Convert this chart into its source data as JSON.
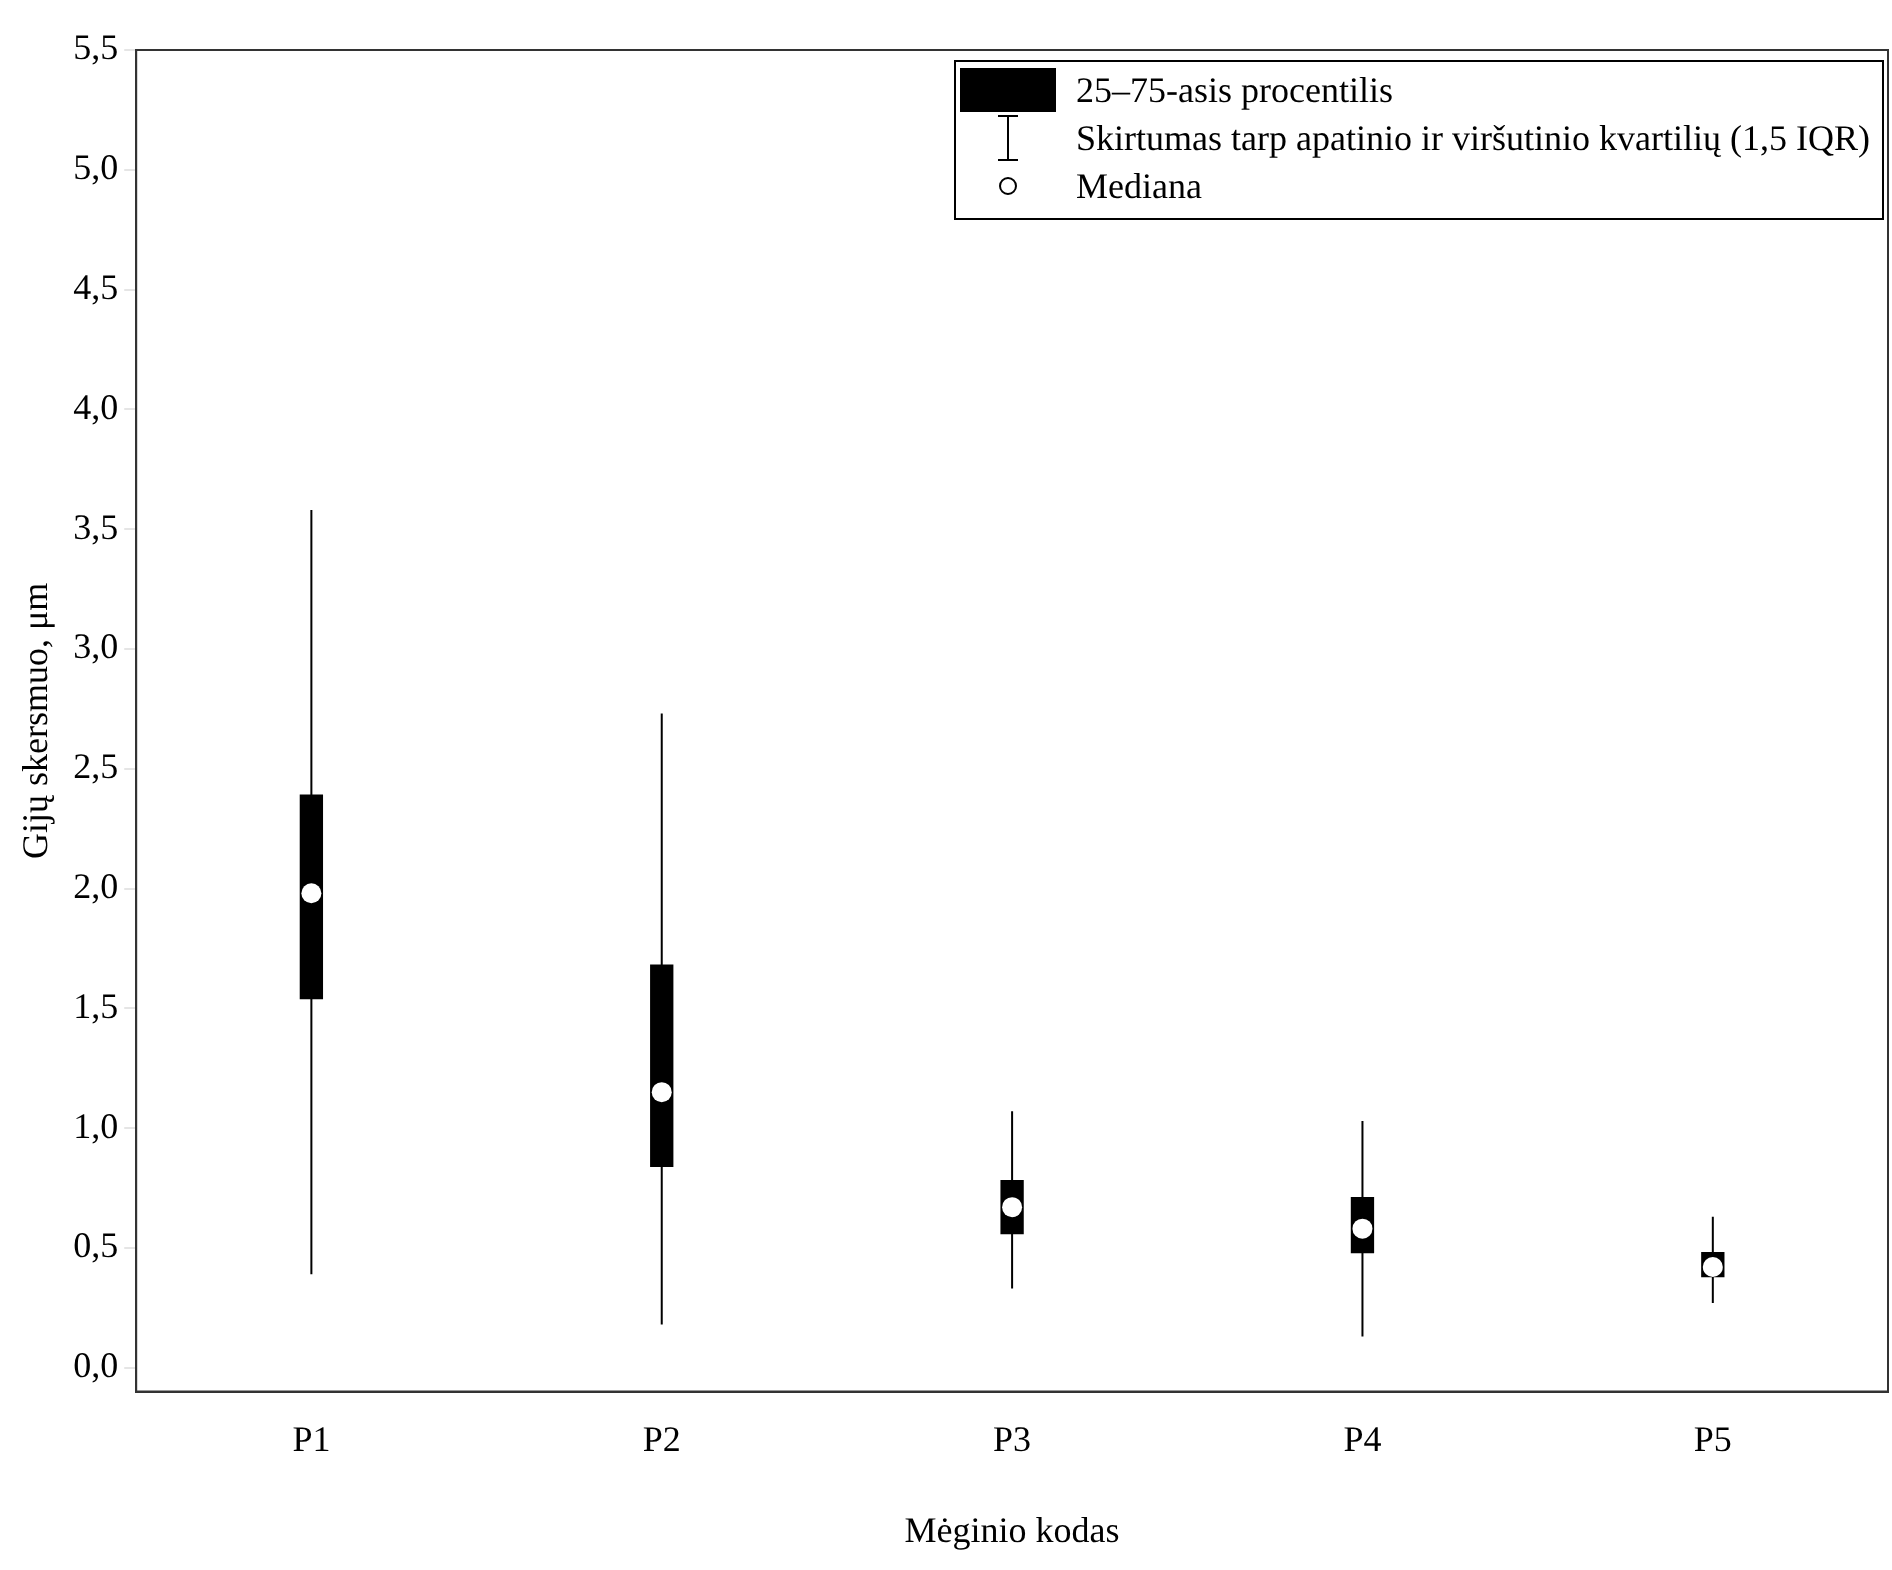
{
  "chart_data": {
    "type": "box",
    "xlabel": "Mėginio kodas",
    "ylabel": "Gijų skersmuo, μm",
    "categories": [
      "P1",
      "P2",
      "P3",
      "P4",
      "P5"
    ],
    "color": "#000000",
    "boxes": [
      {
        "low": 0.39,
        "q1": 1.54,
        "median": 1.98,
        "q3": 2.39,
        "high": 3.58
      },
      {
        "low": 0.18,
        "q1": 0.84,
        "median": 1.15,
        "q3": 1.68,
        "high": 2.73
      },
      {
        "low": 0.33,
        "q1": 0.56,
        "median": 0.67,
        "q3": 0.78,
        "high": 1.07
      },
      {
        "low": 0.13,
        "q1": 0.48,
        "median": 0.58,
        "q3": 0.71,
        "high": 1.03
      },
      {
        "low": 0.27,
        "q1": 0.38,
        "median": 0.42,
        "q3": 0.48,
        "high": 0.63
      }
    ],
    "ylim": [
      -0.1,
      5.5
    ],
    "yticks": [
      {
        "value": 0,
        "label": "0,0"
      },
      {
        "value": 0.5,
        "label": "0,5"
      },
      {
        "value": 1,
        "label": "1,0"
      },
      {
        "value": 1.5,
        "label": "1,5"
      },
      {
        "value": 2,
        "label": "2,0"
      },
      {
        "value": 2.5,
        "label": "2,5"
      },
      {
        "value": 3,
        "label": "3,0"
      },
      {
        "value": 3.5,
        "label": "3,5"
      },
      {
        "value": 4,
        "label": "4,0"
      },
      {
        "value": 4.5,
        "label": "4,5"
      },
      {
        "value": 5,
        "label": "5,0"
      },
      {
        "value": 5.5,
        "label": "5,5"
      }
    ],
    "annotations": [
      "25–75-asis procentilis",
      "Skirtumas tarp apatinio ir viršutinio kvartilių (1,5 IQR)",
      "Mediana"
    ]
  }
}
